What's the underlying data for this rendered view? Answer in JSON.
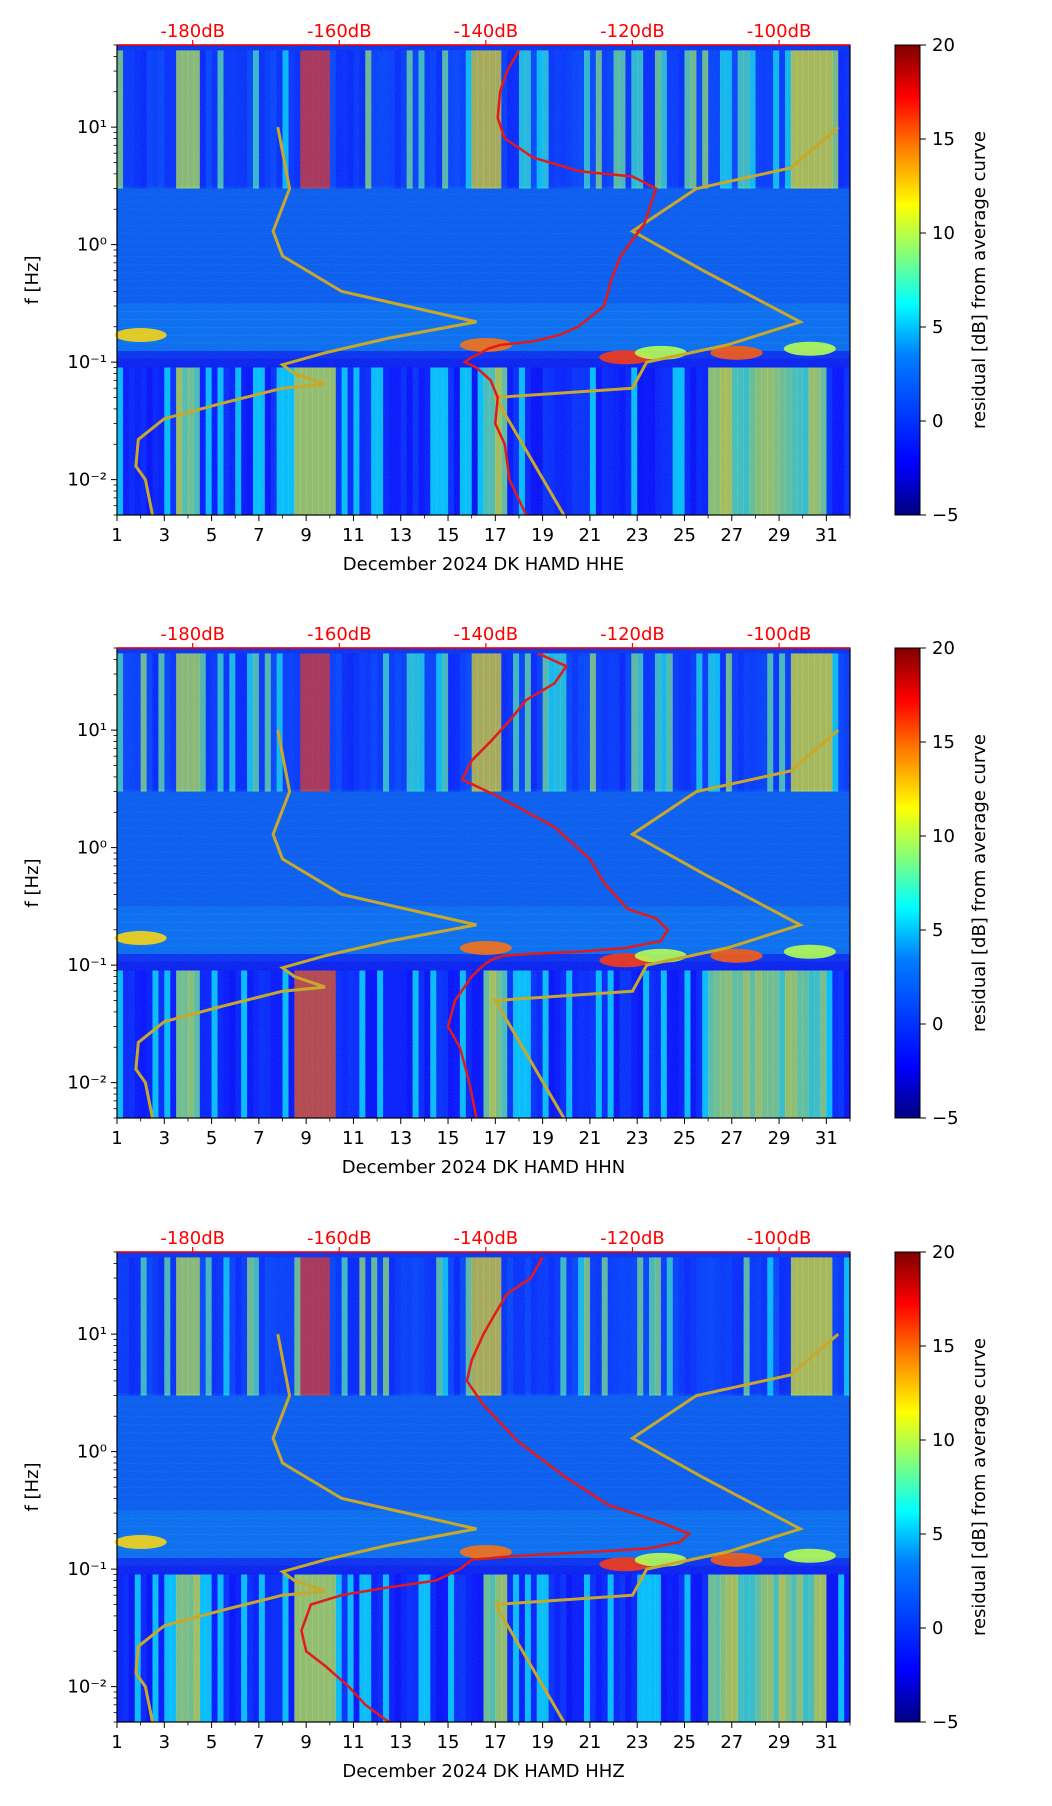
{
  "figure": {
    "colorbar_label": "residual [dB] from average curve",
    "colorbar_ticks": [
      "20",
      "15",
      "10",
      "5",
      "0",
      "−5"
    ],
    "colormap": [
      "#00007f",
      "#0000ff",
      "#007fff",
      "#00ffff",
      "#7fff7f",
      "#ffff00",
      "#ff7f00",
      "#ff0000",
      "#7f0000"
    ],
    "psd_curve_color": "#e31a1c",
    "noise_model_color": "#c8a82a",
    "db_label_color": "#ff0000"
  },
  "chart_data": [
    {
      "type": "heatmap",
      "xlabel": "December 2024 DK HAMD  HHE",
      "ylabel": "f [Hz]",
      "x_ticks": [
        "1",
        "3",
        "5",
        "7",
        "9",
        "11",
        "13",
        "15",
        "17",
        "19",
        "21",
        "23",
        "25",
        "27",
        "29",
        "31"
      ],
      "y_ticks": [
        "10⁻²",
        "10⁻¹",
        "10⁰",
        "10¹"
      ],
      "xlim": [
        1,
        32
      ],
      "ylim_hz": [
        0.005,
        50
      ],
      "y_scale": "log",
      "colorbar_range_db": [
        -5,
        20
      ],
      "top_axis_labels": [
        "-180dB",
        "-160dB",
        "-140dB",
        "-120dB",
        "-100dB"
      ],
      "red_curve": {
        "name": "",
        "day": [
          18.3,
          17.6,
          17.4,
          17.0,
          17.1,
          16.8,
          16.2,
          15.7,
          16.0,
          16.4,
          16.7,
          17.2,
          18.6,
          19.7,
          20.5,
          21.1,
          21.6,
          21.9,
          22.3,
          23.3,
          23.8,
          22.8,
          20.6,
          18.6,
          17.4,
          17.1,
          17.2,
          17.5,
          18.0
        ],
        "freq_hz": [
          0.005,
          0.01,
          0.02,
          0.03,
          0.05,
          0.07,
          0.09,
          0.1,
          0.11,
          0.12,
          0.13,
          0.14,
          0.15,
          0.17,
          0.2,
          0.25,
          0.3,
          0.5,
          0.8,
          1.5,
          3.0,
          3.8,
          4.2,
          5.5,
          8.0,
          12,
          20,
          30,
          45
        ]
      }
    },
    {
      "type": "heatmap",
      "xlabel": "December 2024 DK HAMD  HHN",
      "ylabel": "f [Hz]",
      "x_ticks": [
        "1",
        "3",
        "5",
        "7",
        "9",
        "11",
        "13",
        "15",
        "17",
        "19",
        "21",
        "23",
        "25",
        "27",
        "29",
        "31"
      ],
      "y_ticks": [
        "10⁻²",
        "10⁻¹",
        "10⁰",
        "10¹"
      ],
      "xlim": [
        1,
        32
      ],
      "ylim_hz": [
        0.005,
        50
      ],
      "y_scale": "log",
      "colorbar_range_db": [
        -5,
        20
      ],
      "top_axis_labels": [
        "-180dB",
        "-160dB",
        "-140dB",
        "-120dB",
        "-100dB"
      ],
      "red_curve": {
        "name": "",
        "day": [
          16.2,
          16.0,
          15.8,
          15.5,
          15.0,
          15.3,
          16.0,
          16.5,
          16.8,
          17.3,
          18.6,
          20.5,
          22.5,
          24.0,
          24.3,
          23.8,
          22.6,
          21.6,
          21.0,
          19.5,
          17.0,
          15.6,
          16.0,
          16.8,
          17.6,
          18.3,
          19.5,
          20.0,
          18.8
        ],
        "freq_hz": [
          0.005,
          0.008,
          0.012,
          0.02,
          0.03,
          0.05,
          0.08,
          0.1,
          0.11,
          0.12,
          0.125,
          0.13,
          0.14,
          0.16,
          0.2,
          0.25,
          0.3,
          0.5,
          0.8,
          1.5,
          2.8,
          3.8,
          5.5,
          8.0,
          12,
          18,
          25,
          35,
          45
        ]
      }
    },
    {
      "type": "heatmap",
      "xlabel": "December 2024 DK HAMD  HHZ",
      "ylabel": "f [Hz]",
      "x_ticks": [
        "1",
        "3",
        "5",
        "7",
        "9",
        "11",
        "13",
        "15",
        "17",
        "19",
        "21",
        "23",
        "25",
        "27",
        "29",
        "31"
      ],
      "y_ticks": [
        "10⁻²",
        "10⁻¹",
        "10⁰",
        "10¹"
      ],
      "xlim": [
        1,
        32
      ],
      "ylim_hz": [
        0.005,
        50
      ],
      "y_scale": "log",
      "colorbar_range_db": [
        -5,
        20
      ],
      "top_axis_labels": [
        "-180dB",
        "-160dB",
        "-140dB",
        "-120dB",
        "-100dB"
      ],
      "red_curve": {
        "name": "",
        "day": [
          12.5,
          11.5,
          10.8,
          9.8,
          9.0,
          8.8,
          9.2,
          10.5,
          12.5,
          14.5,
          15.5,
          16.0,
          18.0,
          21.0,
          23.5,
          24.8,
          25.2,
          24.0,
          21.8,
          20.0,
          18.0,
          16.5,
          15.8,
          16.0,
          16.5,
          17.0,
          17.5,
          18.5,
          19.0
        ],
        "freq_hz": [
          0.005,
          0.007,
          0.01,
          0.015,
          0.02,
          0.03,
          0.05,
          0.06,
          0.07,
          0.08,
          0.1,
          0.12,
          0.13,
          0.14,
          0.15,
          0.17,
          0.2,
          0.25,
          0.35,
          0.6,
          1.2,
          2.5,
          4.0,
          6.0,
          10,
          15,
          22,
          30,
          45
        ]
      }
    }
  ],
  "noise_model_curve": {
    "name": "",
    "day": [
      2.5,
      2.2,
      1.8,
      1.9,
      3.0,
      5.5,
      8.0,
      9.8,
      8.5,
      8.0,
      9.8,
      12.5,
      16.2,
      10.5,
      8.0,
      7.6,
      8.3,
      7.8
    ],
    "freq_hz": [
      0.005,
      0.01,
      0.013,
      0.022,
      0.033,
      0.045,
      0.06,
      0.065,
      0.08,
      0.095,
      0.12,
      0.16,
      0.22,
      0.4,
      0.8,
      1.3,
      3.0,
      10.0
    ]
  },
  "high_noise_model_curve": {
    "name": "",
    "day": [
      19.9,
      17.0,
      22.8,
      23.4,
      26.8,
      29.9,
      25.8,
      22.8,
      25.5,
      29.5,
      31.5
    ],
    "freq_hz": [
      0.005,
      0.05,
      0.06,
      0.1,
      0.14,
      0.22,
      0.6,
      1.3,
      3.0,
      4.5,
      10.0
    ]
  }
}
